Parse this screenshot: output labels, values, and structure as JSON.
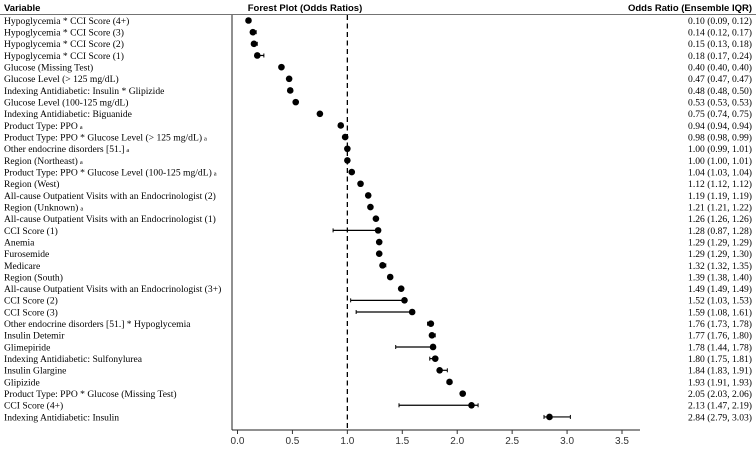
{
  "headers": {
    "variable": "Variable",
    "plot": "Forest Plot (Odds Ratios)",
    "or": "Odds Ratio (Ensemble IQR)"
  },
  "chart_data": {
    "type": "forest",
    "title": "Forest Plot (Odds Ratios)",
    "xlabel": "",
    "xlim": [
      -0.15,
      3.65
    ],
    "xticks": [
      "0.0",
      "0.5",
      "1.0",
      "1.5",
      "2.0",
      "2.5",
      "3.0",
      "3.5"
    ],
    "reference_line": 1.0,
    "grid": false,
    "rows": [
      {
        "label": "Hypoglycemia * CCI Score (4+)",
        "or": 0.1,
        "lo": 0.09,
        "hi": 0.12,
        "or_text": "0.10 (0.09, 0.12)",
        "mark": ""
      },
      {
        "label": "Hypoglycemia * CCI Score (3)",
        "or": 0.14,
        "lo": 0.12,
        "hi": 0.17,
        "or_text": "0.14 (0.12, 0.17)",
        "mark": ""
      },
      {
        "label": "Hypoglycemia * CCI Score (2)",
        "or": 0.15,
        "lo": 0.13,
        "hi": 0.18,
        "or_text": "0.15 (0.13, 0.18)",
        "mark": ""
      },
      {
        "label": "Hypoglycemia * CCI Score (1)",
        "or": 0.18,
        "lo": 0.17,
        "hi": 0.24,
        "or_text": "0.18 (0.17, 0.24)",
        "mark": ""
      },
      {
        "label": "Glucose (Missing Test)",
        "or": 0.4,
        "lo": 0.4,
        "hi": 0.4,
        "or_text": "0.40 (0.40, 0.40)",
        "mark": ""
      },
      {
        "label": "Glucose Level (> 125 mg/dL)",
        "or": 0.47,
        "lo": 0.47,
        "hi": 0.47,
        "or_text": "0.47 (0.47, 0.47)",
        "mark": ""
      },
      {
        "label": "Indexing Antidiabetic: Insulin * Glipizide",
        "or": 0.48,
        "lo": 0.48,
        "hi": 0.5,
        "or_text": "0.48 (0.48, 0.50)",
        "mark": ""
      },
      {
        "label": "Glucose Level (100-125 mg/dL)",
        "or": 0.53,
        "lo": 0.53,
        "hi": 0.53,
        "or_text": "0.53 (0.53, 0.53)",
        "mark": ""
      },
      {
        "label": "Indexing Antidiabetic: Biguanide",
        "or": 0.75,
        "lo": 0.74,
        "hi": 0.75,
        "or_text": "0.75 (0.74, 0.75)",
        "mark": ""
      },
      {
        "label": "Product Type: PPO",
        "or": 0.94,
        "lo": 0.94,
        "hi": 0.94,
        "or_text": "0.94 (0.94, 0.94)",
        "mark": "a"
      },
      {
        "label": "Product Type: PPO * Glucose Level (> 125 mg/dL)",
        "or": 0.98,
        "lo": 0.98,
        "hi": 0.99,
        "or_text": "0.98 (0.98, 0.99)",
        "mark": "a"
      },
      {
        "label": "Other endocrine disorders [51.]",
        "or": 1.0,
        "lo": 0.99,
        "hi": 1.01,
        "or_text": "1.00 (0.99, 1.01)",
        "mark": "a"
      },
      {
        "label": "Region (Northeast)",
        "or": 1.0,
        "lo": 1.0,
        "hi": 1.01,
        "or_text": "1.00 (1.00, 1.01)",
        "mark": "a"
      },
      {
        "label": "Product Type: PPO * Glucose Level (100-125 mg/dL)",
        "or": 1.04,
        "lo": 1.03,
        "hi": 1.04,
        "or_text": "1.04 (1.03, 1.04)",
        "mark": "a"
      },
      {
        "label": "Region (West)",
        "or": 1.12,
        "lo": 1.12,
        "hi": 1.12,
        "or_text": "1.12 (1.12, 1.12)",
        "mark": ""
      },
      {
        "label": "All-cause Outpatient Visits with an Endocrinologist (2)",
        "or": 1.19,
        "lo": 1.19,
        "hi": 1.19,
        "or_text": "1.19 (1.19, 1.19)",
        "mark": ""
      },
      {
        "label": "Region (Unknown)",
        "or": 1.21,
        "lo": 1.21,
        "hi": 1.22,
        "or_text": "1.21 (1.21, 1.22)",
        "mark": "a"
      },
      {
        "label": "All-cause Outpatient Visits with an Endocrinologist (1)",
        "or": 1.26,
        "lo": 1.26,
        "hi": 1.26,
        "or_text": "1.26 (1.26, 1.26)",
        "mark": ""
      },
      {
        "label": "CCI Score (1)",
        "or": 1.28,
        "lo": 0.87,
        "hi": 1.28,
        "or_text": "1.28 (0.87, 1.28)",
        "mark": ""
      },
      {
        "label": "Anemia",
        "or": 1.29,
        "lo": 1.29,
        "hi": 1.29,
        "or_text": "1.29 (1.29, 1.29)",
        "mark": ""
      },
      {
        "label": "Furosemide",
        "or": 1.29,
        "lo": 1.29,
        "hi": 1.3,
        "or_text": "1.29 (1.29, 1.30)",
        "mark": ""
      },
      {
        "label": "Medicare",
        "or": 1.32,
        "lo": 1.32,
        "hi": 1.35,
        "or_text": "1.32 (1.32, 1.35)",
        "mark": ""
      },
      {
        "label": "Region (South)",
        "or": 1.39,
        "lo": 1.38,
        "hi": 1.4,
        "or_text": "1.39 (1.38, 1.40)",
        "mark": ""
      },
      {
        "label": "All-cause Outpatient Visits with an Endocrinologist (3+)",
        "or": 1.49,
        "lo": 1.49,
        "hi": 1.49,
        "or_text": "1.49 (1.49, 1.49)",
        "mark": ""
      },
      {
        "label": "CCI Score (2)",
        "or": 1.52,
        "lo": 1.03,
        "hi": 1.53,
        "or_text": "1.52 (1.03, 1.53)",
        "mark": ""
      },
      {
        "label": "CCI Score (3)",
        "or": 1.59,
        "lo": 1.08,
        "hi": 1.61,
        "or_text": "1.59 (1.08, 1.61)",
        "mark": ""
      },
      {
        "label": "Other endocrine disorders [51.] * Hypoglycemia",
        "or": 1.76,
        "lo": 1.73,
        "hi": 1.78,
        "or_text": "1.76 (1.73, 1.78)",
        "mark": ""
      },
      {
        "label": "Insulin Detemir",
        "or": 1.77,
        "lo": 1.76,
        "hi": 1.8,
        "or_text": "1.77 (1.76, 1.80)",
        "mark": ""
      },
      {
        "label": "Glimepiride",
        "or": 1.78,
        "lo": 1.44,
        "hi": 1.78,
        "or_text": "1.78 (1.44, 1.78)",
        "mark": ""
      },
      {
        "label": "Indexing Antidiabetic: Sulfonylurea",
        "or": 1.8,
        "lo": 1.75,
        "hi": 1.81,
        "or_text": "1.80 (1.75, 1.81)",
        "mark": ""
      },
      {
        "label": "Insulin Glargine",
        "or": 1.84,
        "lo": 1.83,
        "hi": 1.91,
        "or_text": "1.84 (1.83, 1.91)",
        "mark": ""
      },
      {
        "label": "Glipizide",
        "or": 1.93,
        "lo": 1.91,
        "hi": 1.93,
        "or_text": "1.93 (1.91, 1.93)",
        "mark": ""
      },
      {
        "label": "Product Type: PPO * Glucose (Missing Test)",
        "or": 2.05,
        "lo": 2.03,
        "hi": 2.06,
        "or_text": "2.05 (2.03, 2.06)",
        "mark": ""
      },
      {
        "label": "CCI Score (4+)",
        "or": 2.13,
        "lo": 1.47,
        "hi": 2.19,
        "or_text": "2.13 (1.47, 2.19)",
        "mark": ""
      },
      {
        "label": "Indexing Antidiabetic: Insulin",
        "or": 2.84,
        "lo": 2.79,
        "hi": 3.03,
        "or_text": "2.84 (2.79, 3.03)",
        "mark": ""
      }
    ]
  }
}
